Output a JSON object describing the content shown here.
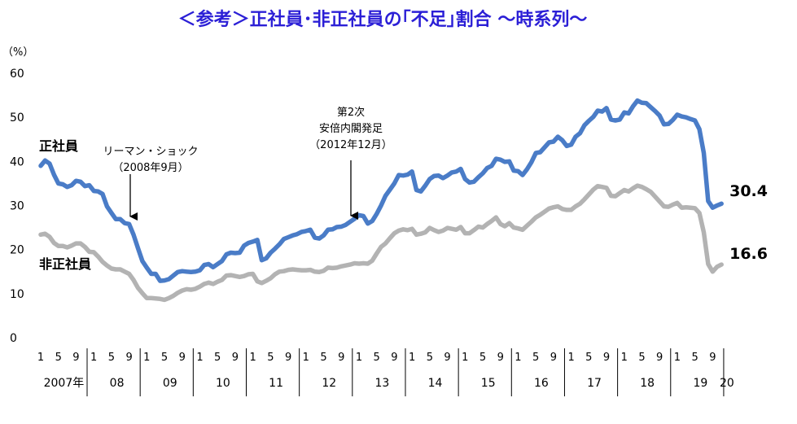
{
  "chart_data": {
    "type": "line",
    "title": "＜参考＞正社員･非正社員の｢不足｣割合 ～時系列～",
    "unit": "（%）",
    "ylim": [
      0,
      60
    ],
    "yticks": [
      "60",
      "50",
      "40",
      "30",
      "20",
      "10",
      "0"
    ],
    "month_tick_labels": [
      "1",
      "5",
      "9"
    ],
    "year_labels": [
      "2007年",
      "08",
      "09",
      "10",
      "11",
      "12",
      "13",
      "14",
      "15",
      "16",
      "17",
      "18",
      "19",
      "20"
    ],
    "series": [
      {
        "name": "正社員",
        "color": "#4a7cc7",
        "end_label": "30.4",
        "values": [
          39.0,
          40.2,
          39.5,
          37.0,
          35.0,
          34.8,
          34.2,
          34.6,
          35.6,
          35.4,
          34.4,
          34.6,
          33.3,
          33.2,
          32.6,
          29.8,
          28.3,
          26.9,
          26.9,
          26.0,
          25.8,
          23.4,
          20.3,
          17.4,
          15.9,
          14.5,
          14.5,
          12.9,
          13.0,
          13.3,
          14.1,
          14.9,
          15.1,
          15.0,
          14.9,
          15.0,
          15.3,
          16.5,
          16.7,
          16.0,
          16.7,
          17.4,
          18.9,
          19.3,
          19.2,
          19.3,
          20.9,
          21.5,
          21.8,
          22.2,
          17.6,
          18.0,
          19.3,
          20.2,
          21.2,
          22.4,
          22.8,
          23.2,
          23.5,
          24.0,
          24.2,
          24.5,
          22.7,
          22.5,
          23.2,
          24.5,
          24.6,
          25.1,
          25.2,
          25.6,
          26.3,
          27.0,
          27.8,
          27.6,
          25.9,
          26.5,
          28.1,
          30.0,
          32.2,
          33.6,
          35.0,
          36.9,
          36.8,
          37.0,
          37.7,
          33.5,
          33.2,
          34.5,
          36.0,
          36.7,
          36.8,
          36.2,
          36.8,
          37.5,
          37.7,
          38.3,
          36.0,
          35.2,
          35.4,
          36.4,
          37.3,
          38.5,
          39.0,
          40.6,
          40.4,
          39.9,
          40.0,
          37.9,
          37.8,
          36.9,
          38.2,
          39.8,
          41.9,
          42.1,
          43.2,
          44.3,
          44.5,
          45.6,
          44.8,
          43.5,
          43.8,
          45.6,
          46.4,
          48.2,
          49.2,
          50.1,
          51.5,
          51.3,
          52.1,
          49.5,
          49.3,
          49.5,
          51.1,
          50.9,
          52.5,
          53.8,
          53.3,
          53.2,
          52.3,
          51.4,
          50.4,
          48.4,
          48.5,
          49.4,
          50.6,
          50.2,
          50.0,
          49.6,
          49.3,
          47.3,
          41.9,
          31.0,
          29.5,
          30.0,
          30.4
        ]
      },
      {
        "name": "非正社員",
        "color": "#b3b3b3",
        "end_label": "16.6",
        "values": [
          23.4,
          23.6,
          22.9,
          21.5,
          20.8,
          20.8,
          20.5,
          20.9,
          21.4,
          21.4,
          20.6,
          19.5,
          19.4,
          18.4,
          17.2,
          16.4,
          15.7,
          15.5,
          15.5,
          15.0,
          14.5,
          13.1,
          11.3,
          10.1,
          9.0,
          9.0,
          8.9,
          8.8,
          8.6,
          9.0,
          9.5,
          10.2,
          10.7,
          11.0,
          10.9,
          11.1,
          11.6,
          12.2,
          12.5,
          12.2,
          12.7,
          13.1,
          14.1,
          14.2,
          14.0,
          13.8,
          14.0,
          14.4,
          14.5,
          12.8,
          12.4,
          12.9,
          13.5,
          14.4,
          15.0,
          15.1,
          15.4,
          15.5,
          15.4,
          15.3,
          15.3,
          15.4,
          15.0,
          14.9,
          15.2,
          15.9,
          15.8,
          15.9,
          16.2,
          16.4,
          16.6,
          16.9,
          16.8,
          16.9,
          16.8,
          17.5,
          19.1,
          20.6,
          21.4,
          22.6,
          23.7,
          24.3,
          24.6,
          24.4,
          24.7,
          23.4,
          23.6,
          23.9,
          24.9,
          24.4,
          24.0,
          24.3,
          24.9,
          24.7,
          24.5,
          25.1,
          23.7,
          23.7,
          24.4,
          25.2,
          25.0,
          25.8,
          26.5,
          27.3,
          25.8,
          25.3,
          26.0,
          25.0,
          24.8,
          24.5,
          25.4,
          26.3,
          27.3,
          27.9,
          28.6,
          29.3,
          29.6,
          29.8,
          29.2,
          29.0,
          29.0,
          29.8,
          30.4,
          31.4,
          32.5,
          33.6,
          34.4,
          34.2,
          34.0,
          32.2,
          32.1,
          32.8,
          33.5,
          33.2,
          33.9,
          34.5,
          34.2,
          33.7,
          33.1,
          32.0,
          30.9,
          29.8,
          29.7,
          30.2,
          30.6,
          29.5,
          29.6,
          29.5,
          29.4,
          28.3,
          23.9,
          16.7,
          15.0,
          16.1,
          16.6
        ]
      }
    ],
    "annotations": [
      {
        "lines": [
          "リーマン・ショック",
          "（2008年9月）"
        ]
      },
      {
        "lines": [
          "第2次",
          "安倍内閣発足",
          "（2012年12月）"
        ]
      }
    ]
  }
}
